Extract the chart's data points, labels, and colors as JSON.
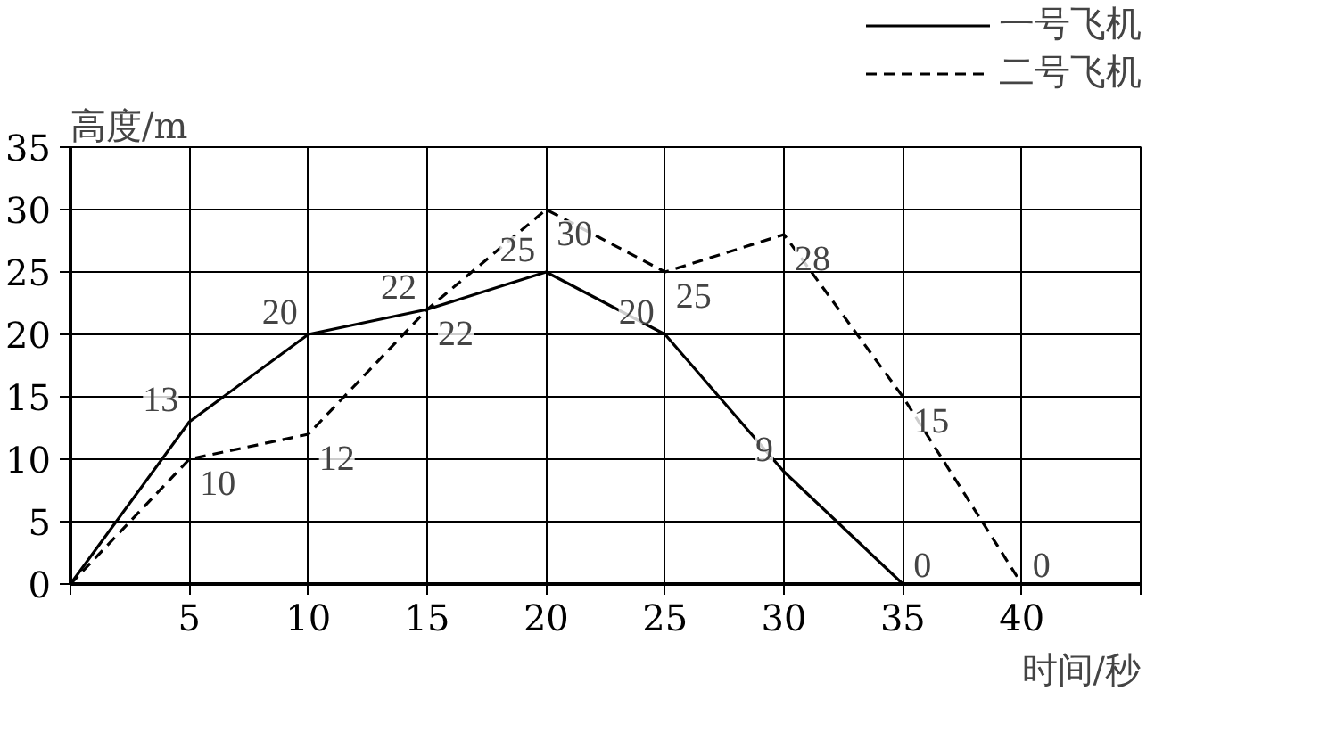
{
  "chart_data": {
    "type": "line",
    "xlabel": "时间/秒",
    "ylabel": "高度/m",
    "xlim": [
      0,
      45
    ],
    "ylim": [
      0,
      35
    ],
    "xticks": [
      {
        "value": 0,
        "label": null
      },
      5,
      10,
      15,
      20,
      25,
      30,
      35,
      40,
      {
        "value": 45,
        "label": null
      }
    ],
    "yticks": [
      0,
      5,
      10,
      15,
      20,
      25,
      30,
      35
    ],
    "grid": true,
    "legend": "top right",
    "series": [
      {
        "name": "一号飞机",
        "color": "#000000",
        "line_style": "solid",
        "x": [
          0,
          5,
          10,
          15,
          20,
          25,
          30,
          35
        ],
        "values": [
          0,
          13,
          20,
          22,
          25,
          20,
          9,
          0
        ],
        "value_labels": [
          null,
          "13",
          "20",
          "22",
          "25",
          "20",
          "9",
          "0"
        ]
      },
      {
        "name": "二号飞机",
        "color": "#000000",
        "line_style": "dashed",
        "x": [
          0,
          5,
          10,
          15,
          20,
          25,
          30,
          35,
          40
        ],
        "values": [
          0,
          10,
          12,
          22,
          30,
          25,
          28,
          15,
          0
        ],
        "value_labels": [
          null,
          "10",
          "12",
          "22",
          "30",
          "25",
          "28",
          "15",
          "0"
        ]
      }
    ]
  }
}
